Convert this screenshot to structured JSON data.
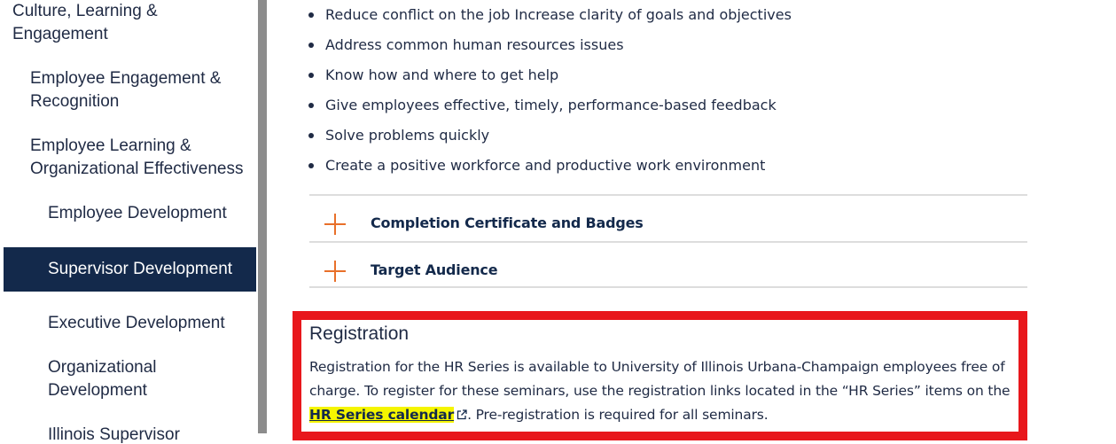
{
  "sidebar": {
    "items": [
      {
        "label": "Culture, Learning & Engagement",
        "level": 1
      },
      {
        "label": "Employee Engagement & Recognition",
        "level": 2
      },
      {
        "label": "Employee Learning & Organizational Effectiveness",
        "level": 2
      },
      {
        "label": "Employee Development",
        "level": 3
      },
      {
        "label": "Supervisor Development",
        "level": 3,
        "active": true
      },
      {
        "label": "Executive Development",
        "level": 3
      },
      {
        "label": "Organizational Development",
        "level": 3
      },
      {
        "label": "Illinois Supervisor",
        "level": 3
      }
    ]
  },
  "main": {
    "bullets": [
      "Reduce conflict on the job Increase clarity of goals and objectives",
      "Address common human resources issues",
      "Know how and where to get help",
      "Give employees effective, timely, performance-based feedback",
      "Solve problems quickly",
      "Create a positive workforce and productive work environment"
    ],
    "accordion": [
      {
        "label": "Completion Certificate and Badges",
        "icon": "plus-icon"
      },
      {
        "label": "Target Audience",
        "icon": "plus-icon"
      }
    ],
    "registration": {
      "title": "Registration",
      "text_before": "Registration for the HR Series is available to University of Illinois Urbana-Champaign employees free of charge. To register for these seminars, use the registration links located in the “HR Series” items on the ",
      "link_label": "HR Series calendar",
      "link_icon": "external-link-icon",
      "text_after": ". Pre-registration is required for all seminars."
    }
  },
  "colors": {
    "navy": "#13294b",
    "orange": "#e8702a",
    "highlight_border": "#e8171c",
    "link_highlight": "#f5f500"
  }
}
